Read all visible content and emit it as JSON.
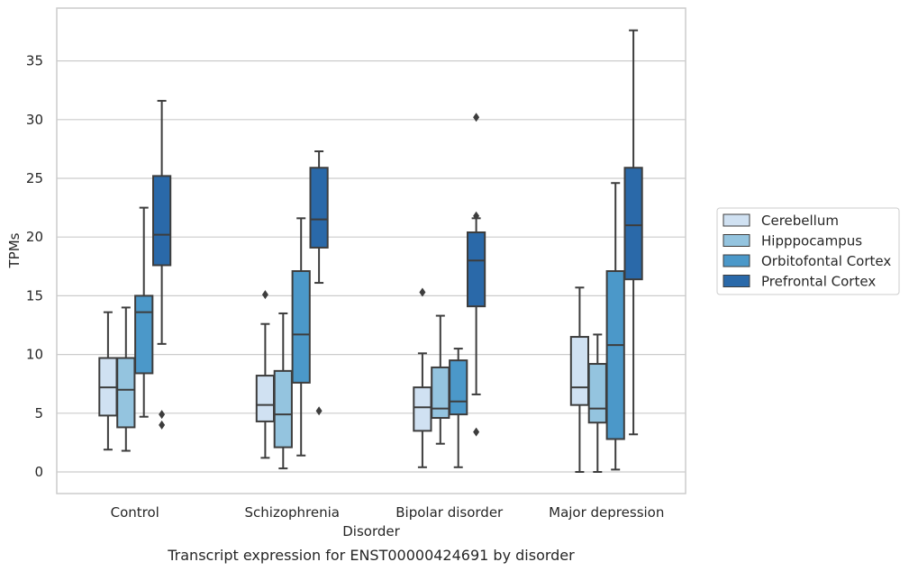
{
  "chart_data": {
    "type": "box",
    "caption": "Transcript expression for ENST00000424691 by disorder",
    "xlabel": "Disorder",
    "ylabel": "TPMs",
    "ylim": [
      -1.8,
      38.8
    ],
    "yticks": [
      0,
      5,
      10,
      15,
      20,
      25,
      30,
      35
    ],
    "grid": "horizontal",
    "legend_position": "right",
    "categories": [
      "Control",
      "Schizophrenia",
      "Bipolar disorder",
      "Major depression"
    ],
    "series": [
      {
        "name": "Cerebellum",
        "color": "#d0e1f2",
        "boxes": [
          {
            "whisker_low": 1.9,
            "q1": 4.8,
            "median": 7.2,
            "q3": 9.7,
            "whisker_high": 13.6,
            "outliers": []
          },
          {
            "whisker_low": 1.2,
            "q1": 4.3,
            "median": 5.7,
            "q3": 8.2,
            "whisker_high": 12.6,
            "outliers": [
              15.1
            ]
          },
          {
            "whisker_low": 0.4,
            "q1": 3.5,
            "median": 5.5,
            "q3": 7.2,
            "whisker_high": 10.1,
            "outliers": [
              15.3
            ]
          },
          {
            "whisker_low": 0.0,
            "q1": 5.7,
            "median": 7.2,
            "q3": 11.5,
            "whisker_high": 15.7,
            "outliers": []
          }
        ]
      },
      {
        "name": "Hipppocampus",
        "color": "#94c4df",
        "boxes": [
          {
            "whisker_low": 1.8,
            "q1": 3.8,
            "median": 7.0,
            "q3": 9.7,
            "whisker_high": 14.0,
            "outliers": []
          },
          {
            "whisker_low": 0.3,
            "q1": 2.1,
            "median": 4.9,
            "q3": 8.6,
            "whisker_high": 13.5,
            "outliers": []
          },
          {
            "whisker_low": 2.4,
            "q1": 4.6,
            "median": 5.4,
            "q3": 8.9,
            "whisker_high": 13.3,
            "outliers": []
          },
          {
            "whisker_low": 0.0,
            "q1": 4.2,
            "median": 5.4,
            "q3": 9.2,
            "whisker_high": 11.7,
            "outliers": []
          }
        ]
      },
      {
        "name": "Orbitofontal Cortex",
        "color": "#4b98c9",
        "boxes": [
          {
            "whisker_low": 4.7,
            "q1": 8.4,
            "median": 13.6,
            "q3": 15.0,
            "whisker_high": 22.5,
            "outliers": []
          },
          {
            "whisker_low": 1.4,
            "q1": 7.6,
            "median": 11.7,
            "q3": 17.1,
            "whisker_high": 21.6,
            "outliers": []
          },
          {
            "whisker_low": 0.4,
            "q1": 4.9,
            "median": 6.0,
            "q3": 9.5,
            "whisker_high": 10.5,
            "outliers": []
          },
          {
            "whisker_low": 0.2,
            "q1": 2.8,
            "median": 10.8,
            "q3": 17.1,
            "whisker_high": 24.6,
            "outliers": []
          }
        ]
      },
      {
        "name": "Prefrontal Cortex",
        "color": "#2a69a9",
        "boxes": [
          {
            "whisker_low": 10.9,
            "q1": 17.6,
            "median": 20.2,
            "q3": 25.2,
            "whisker_high": 31.6,
            "outliers": [
              4.9,
              4.0
            ]
          },
          {
            "whisker_low": 16.1,
            "q1": 19.1,
            "median": 21.5,
            "q3": 25.9,
            "whisker_high": 27.3,
            "outliers": [
              5.2
            ]
          },
          {
            "whisker_low": 6.6,
            "q1": 14.1,
            "median": 18.0,
            "q3": 20.4,
            "whisker_high": 21.6,
            "outliers": [
              21.8,
              30.2,
              3.4
            ]
          },
          {
            "whisker_low": 3.2,
            "q1": 16.4,
            "median": 21.0,
            "q3": 25.9,
            "whisker_high": 37.6,
            "outliers": []
          }
        ]
      }
    ]
  }
}
